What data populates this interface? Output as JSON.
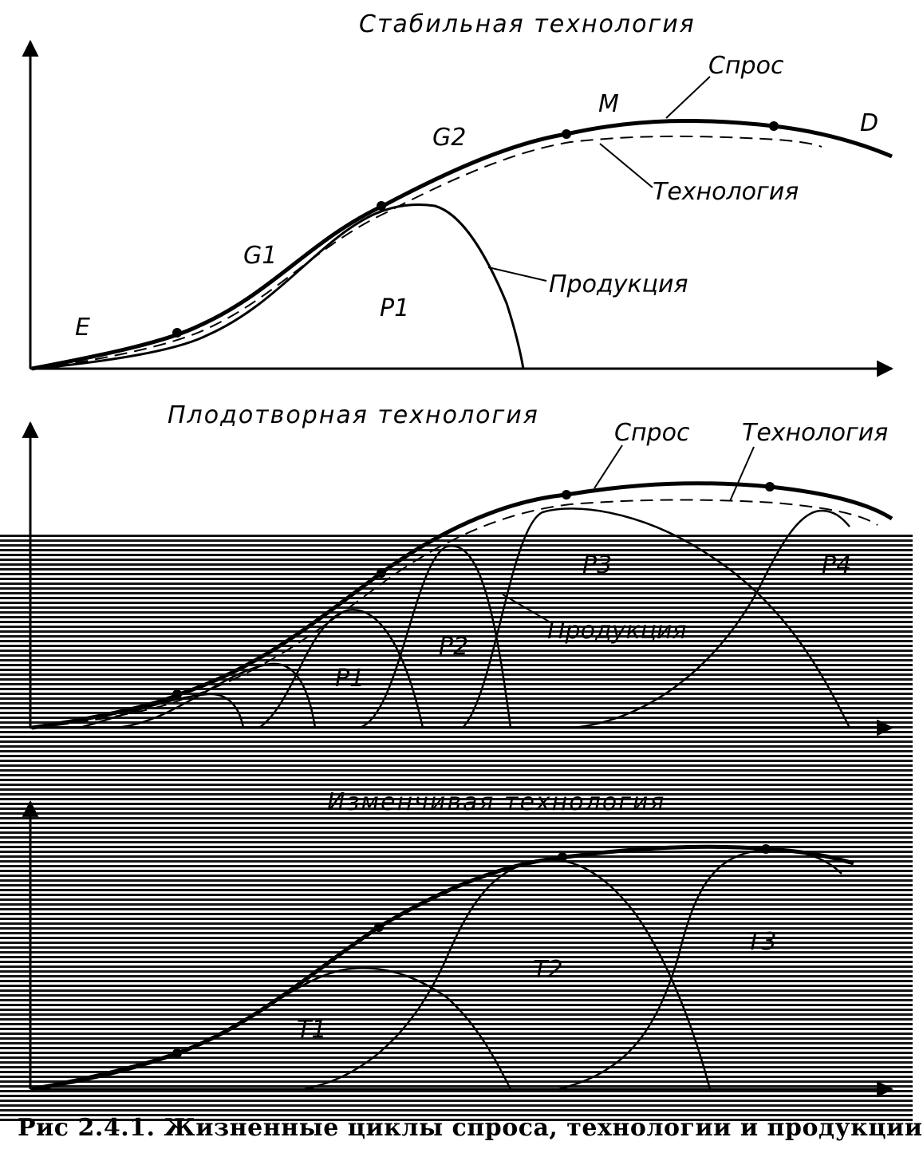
{
  "panels": {
    "top": {
      "title": "Стабильная технология",
      "labels": {
        "demand": "Спрос",
        "technology": "Технология",
        "product": "Продукция",
        "M": "M",
        "D": "D",
        "G2": "G2",
        "G1": "G1",
        "P1": "P1",
        "E": "E"
      }
    },
    "middle": {
      "title": "Плодотворная технология",
      "labels": {
        "demand": "Спрос",
        "technology": "Технология",
        "product": "Продукция",
        "P1": "P1",
        "P2": "P2",
        "P3": "P3",
        "P4": "P4"
      }
    },
    "bottom": {
      "title": "Изменчивая технология",
      "labels": {
        "T1": "T1",
        "T2": "T2",
        "T3": "T3"
      }
    }
  },
  "caption": "Рис 2.4.1. Жизненные циклы спроса, технологии и продукции"
}
